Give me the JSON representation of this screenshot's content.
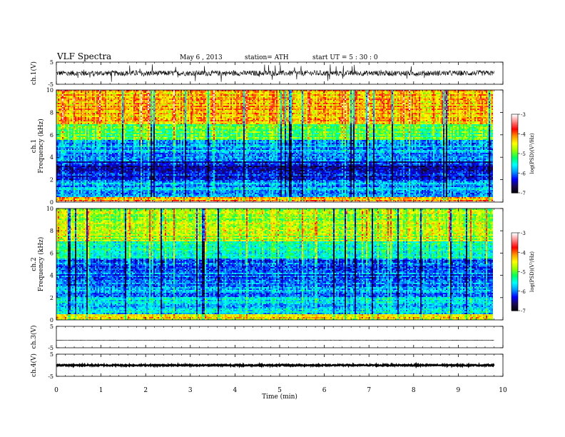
{
  "header": {
    "title": "VLF Spectra",
    "date": "May 6 , 2013",
    "station": "station= ATH",
    "start_time": "start UT = 5 : 30 : 0"
  },
  "colors": {
    "background": "#ffffff",
    "axis": "#000000",
    "colormap": [
      "#000000",
      "#1a0a50",
      "#0000ff",
      "#0096ff",
      "#00ffff",
      "#00ff64",
      "#96ff00",
      "#ffff00",
      "#ff9600",
      "#ff0000",
      "#ff8080",
      "#ffffff"
    ]
  },
  "chart_data": [
    {
      "type": "line",
      "panel": "ch1-waveform",
      "ylabel": "ch.1(V)",
      "ylim": [
        -5,
        5
      ],
      "yticks": [
        5,
        -5
      ],
      "xlim": [
        0,
        10
      ],
      "series_extent_min": 9.8,
      "baseline": 0.0,
      "typical_amplitude": 1.2,
      "spike_amplitude": 4
    },
    {
      "type": "heatmap",
      "panel": "ch1-spectrogram",
      "ylabel_top": "ch.1",
      "ylabel": "Frequency (kHz)",
      "ylim": [
        0,
        10
      ],
      "yticks": [
        0,
        2,
        4,
        6,
        8,
        10
      ],
      "xlim": [
        0,
        10
      ],
      "data_extent_min": 9.8,
      "colorbar": {
        "label": "log(PSD)(V²/Hz)",
        "range": [
          -7,
          -3
        ],
        "ticks": [
          -3,
          -4,
          -5,
          -6,
          -7
        ]
      },
      "band_levels": [
        {
          "fmin": 0,
          "fmax": 0.5,
          "level": -4.2
        },
        {
          "fmin": 0.5,
          "fmax": 2,
          "level": -5.8
        },
        {
          "fmin": 2,
          "fmax": 3.6,
          "level": -6.3
        },
        {
          "fmin": 3.6,
          "fmax": 5.5,
          "level": -5.8
        },
        {
          "fmin": 5.5,
          "fmax": 7,
          "level": -5.0
        },
        {
          "fmin": 7,
          "fmax": 10,
          "level": -4.2
        }
      ]
    },
    {
      "type": "heatmap",
      "panel": "ch2-spectrogram",
      "ylabel_top": "ch.2",
      "ylabel": "Frequency (kHz)",
      "ylim": [
        0,
        10
      ],
      "yticks": [
        0,
        2,
        4,
        6,
        8,
        10
      ],
      "xlim": [
        0,
        10
      ],
      "data_extent_min": 9.8,
      "colorbar": {
        "label": "log(PSD)(V²/Hz)",
        "range": [
          -7,
          -3
        ],
        "ticks": [
          -3,
          -4,
          -5,
          -6,
          -7
        ]
      },
      "band_levels": [
        {
          "fmin": 0,
          "fmax": 0.5,
          "level": -4.4
        },
        {
          "fmin": 0.5,
          "fmax": 2,
          "level": -5.6
        },
        {
          "fmin": 2,
          "fmax": 3.6,
          "level": -5.9
        },
        {
          "fmin": 3.6,
          "fmax": 5.5,
          "level": -6.0
        },
        {
          "fmin": 5.5,
          "fmax": 7,
          "level": -5.3
        },
        {
          "fmin": 7,
          "fmax": 10,
          "level": -4.7
        }
      ]
    },
    {
      "type": "line",
      "panel": "ch3-waveform",
      "ylabel": "ch.3(V)",
      "ylim": [
        -5,
        5
      ],
      "yticks": [
        5,
        -5
      ],
      "xlim": [
        0,
        10
      ],
      "series_extent_min": 9.8,
      "baseline": -1.5,
      "typical_amplitude": 0.1
    },
    {
      "type": "line",
      "panel": "ch4-waveform",
      "ylabel": "ch.4(V)",
      "ylim": [
        -5,
        5
      ],
      "yticks": [
        5,
        -5
      ],
      "xlim": [
        0,
        10
      ],
      "series_extent_min": 9.8,
      "baseline": 0.0,
      "typical_amplitude": 0.3
    }
  ],
  "xaxis": {
    "label": "Time (min)",
    "ticks": [
      "0",
      "1",
      "2",
      "3",
      "4",
      "5",
      "6",
      "7",
      "8",
      "9",
      "10"
    ]
  }
}
